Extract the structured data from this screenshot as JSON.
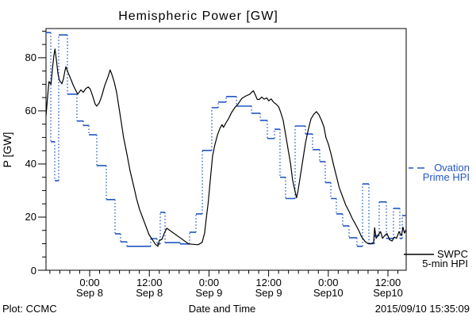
{
  "title": "Hemispheric Power [GW]",
  "legend": {
    "ovation": {
      "line1": "Ovation",
      "line2": "Prime HPI",
      "color": "#2257c4"
    },
    "swpc": {
      "line1": "SWPC",
      "line2": "5-min HPI",
      "color": "#000000"
    }
  },
  "footer": {
    "left": "Plot: CCMC",
    "center": "Date and Time",
    "right": "2015/09/10 15:35:09"
  },
  "chart_data": {
    "type": "line",
    "title": "Hemispheric Power [GW]",
    "xlabel": "Date and Time",
    "ylabel": "P [GW]",
    "ylim": [
      0,
      91
    ],
    "y_major_ticks": [
      0,
      20,
      40,
      60,
      80
    ],
    "y_minor_step": 5,
    "grid": false,
    "legend_position": "right-outside",
    "x_hours_span": 72.45,
    "x_minor_step_hours": 2,
    "x_major_ticks": [
      {
        "t": 8.78,
        "time": "0:00",
        "date": "Sep 8"
      },
      {
        "t": 20.78,
        "time": "12:00",
        "date": "Sep 8"
      },
      {
        "t": 32.78,
        "time": "0:00",
        "date": "Sep 9"
      },
      {
        "t": 44.78,
        "time": "12:00",
        "date": "Sep 9"
      },
      {
        "t": 56.78,
        "time": "0:00",
        "date": "Sep10"
      },
      {
        "t": 68.78,
        "time": "12:00",
        "date": "Sep10"
      }
    ],
    "series": [
      {
        "name": "Ovation Prime HPI",
        "color": "#2257c4",
        "style": "steps",
        "points": [
          [
            0,
            89.5
          ],
          [
            0.96,
            48.4
          ],
          [
            1.76,
            33.7
          ],
          [
            2.55,
            88.6
          ],
          [
            4.31,
            66.3
          ],
          [
            6.22,
            56.2
          ],
          [
            7.5,
            54.5
          ],
          [
            8.62,
            51
          ],
          [
            10.21,
            39.4
          ],
          [
            12.13,
            26.6
          ],
          [
            13.88,
            13.7
          ],
          [
            15,
            10.7
          ],
          [
            16.28,
            9
          ],
          [
            21.06,
            11.9
          ],
          [
            22.34,
            9.9
          ],
          [
            22.98,
            21.8
          ],
          [
            23.94,
            10.4
          ],
          [
            26.97,
            9.9
          ],
          [
            28.88,
            14.3
          ],
          [
            30.16,
            21.2
          ],
          [
            31.44,
            45.1
          ],
          [
            33.35,
            61.2
          ],
          [
            34.63,
            63.3
          ],
          [
            36.22,
            65.4
          ],
          [
            38.3,
            61.8
          ],
          [
            41.33,
            59.1
          ],
          [
            43.09,
            56.4
          ],
          [
            44.52,
            49.6
          ],
          [
            45.96,
            53.1
          ],
          [
            47.07,
            35
          ],
          [
            48.19,
            27
          ],
          [
            50.11,
            54.3
          ],
          [
            52.18,
            51.3
          ],
          [
            53.62,
            45.4
          ],
          [
            55.05,
            40.9
          ],
          [
            56.17,
            33
          ],
          [
            57.29,
            27
          ],
          [
            58.4,
            21.2
          ],
          [
            59.68,
            16.7
          ],
          [
            60.96,
            12.2
          ],
          [
            62.55,
            9
          ],
          [
            63.67,
            32.5
          ],
          [
            64.95,
            10
          ],
          [
            66.06,
            13
          ],
          [
            67.02,
            25.7
          ],
          [
            68.46,
            12
          ],
          [
            69.89,
            23.3
          ],
          [
            71.17,
            12
          ],
          [
            71.65,
            20.6
          ],
          [
            72.45,
            20.6
          ]
        ]
      },
      {
        "name": "SWPC 5-min HPI",
        "color": "#000000",
        "style": "line",
        "points": [
          [
            0,
            58
          ],
          [
            0.3,
            65
          ],
          [
            0.6,
            71
          ],
          [
            1,
            70
          ],
          [
            1.3,
            76
          ],
          [
            1.6,
            81
          ],
          [
            1.8,
            83.3
          ],
          [
            2.1,
            79
          ],
          [
            2.4,
            74
          ],
          [
            2.7,
            71.5
          ],
          [
            3.2,
            70.2
          ],
          [
            3.5,
            72
          ],
          [
            3.8,
            75
          ],
          [
            4,
            76.6
          ],
          [
            4.3,
            75
          ],
          [
            4.8,
            72.8
          ],
          [
            5.4,
            70
          ],
          [
            5.9,
            68
          ],
          [
            6.4,
            66.3
          ],
          [
            7,
            67.9
          ],
          [
            7.5,
            67
          ],
          [
            8,
            68.4
          ],
          [
            8.5,
            69
          ],
          [
            8.9,
            68.2
          ],
          [
            9.4,
            65.5
          ],
          [
            9.9,
            62.5
          ],
          [
            10.2,
            61.8
          ],
          [
            10.7,
            63
          ],
          [
            11.2,
            65.5
          ],
          [
            11.8,
            69.5
          ],
          [
            12.5,
            73
          ],
          [
            12.9,
            75.4
          ],
          [
            13.2,
            74
          ],
          [
            13.7,
            71
          ],
          [
            14.2,
            67
          ],
          [
            14.7,
            61
          ],
          [
            15.2,
            55
          ],
          [
            15.6,
            50
          ],
          [
            16.3,
            43.5
          ],
          [
            16.9,
            37.5
          ],
          [
            17.6,
            32
          ],
          [
            18.2,
            27
          ],
          [
            18.8,
            23
          ],
          [
            19.5,
            19.5
          ],
          [
            20.1,
            16.5
          ],
          [
            20.7,
            13.5
          ],
          [
            21.4,
            11.5
          ],
          [
            22,
            9.8
          ],
          [
            22.5,
            9
          ],
          [
            22.8,
            11.3
          ],
          [
            23.3,
            11.6
          ],
          [
            23.8,
            14
          ],
          [
            24.3,
            15.8
          ],
          [
            28.7,
            9.9
          ],
          [
            30.6,
            9.6
          ],
          [
            31.4,
            10.5
          ],
          [
            31.9,
            14
          ],
          [
            32.2,
            19
          ],
          [
            32.6,
            25
          ],
          [
            32.9,
            31
          ],
          [
            33.2,
            37
          ],
          [
            33.5,
            43
          ],
          [
            34,
            47.5
          ],
          [
            34.5,
            51
          ],
          [
            35,
            53.5
          ],
          [
            35.4,
            54.8
          ],
          [
            35.7,
            53.8
          ],
          [
            36.2,
            55.5
          ],
          [
            36.7,
            57
          ],
          [
            37.3,
            59.3
          ],
          [
            38,
            61.3
          ],
          [
            38.6,
            62.5
          ],
          [
            39.4,
            64.7
          ],
          [
            40.2,
            65.6
          ],
          [
            41,
            66.3
          ],
          [
            41.7,
            67.6
          ],
          [
            42.1,
            66
          ],
          [
            42.5,
            64.3
          ],
          [
            42.9,
            64.3
          ],
          [
            43.4,
            65.2
          ],
          [
            43.9,
            64.4
          ],
          [
            44.4,
            64.9
          ],
          [
            44.8,
            63.8
          ],
          [
            45.3,
            64.5
          ],
          [
            45.8,
            63.2
          ],
          [
            46.3,
            62.5
          ],
          [
            46.8,
            61.5
          ],
          [
            47.2,
            59.5
          ],
          [
            47.7,
            56.5
          ],
          [
            48.2,
            51
          ],
          [
            48.7,
            45.5
          ],
          [
            49.2,
            40
          ],
          [
            49.6,
            34
          ],
          [
            50,
            30.5
          ],
          [
            50.3,
            28
          ],
          [
            50.4,
            27.3
          ],
          [
            50.7,
            30
          ],
          [
            51.2,
            36
          ],
          [
            51.7,
            42
          ],
          [
            52.2,
            48
          ],
          [
            52.7,
            52.5
          ],
          [
            53.3,
            57
          ],
          [
            53.9,
            58.8
          ],
          [
            54.4,
            59.7
          ],
          [
            54.9,
            58.5
          ],
          [
            55.4,
            56.5
          ],
          [
            55.9,
            54
          ],
          [
            56.3,
            50
          ],
          [
            56.8,
            47.5
          ],
          [
            57.3,
            44
          ],
          [
            57.8,
            40
          ],
          [
            58.4,
            35.5
          ],
          [
            59,
            31
          ],
          [
            59.7,
            27.5
          ],
          [
            60.3,
            24.5
          ],
          [
            61,
            22
          ],
          [
            61.6,
            19.5
          ],
          [
            62.2,
            17.5
          ],
          [
            62.9,
            15
          ],
          [
            63.5,
            12.5
          ],
          [
            64.2,
            10.8
          ],
          [
            64.8,
            10
          ],
          [
            65.4,
            10
          ],
          [
            65.9,
            10.5
          ],
          [
            66.1,
            16
          ],
          [
            66.4,
            12
          ],
          [
            66.9,
            13.5
          ],
          [
            67.3,
            14.5
          ],
          [
            67.7,
            12
          ],
          [
            68.1,
            13
          ],
          [
            68.6,
            13.8
          ],
          [
            69.1,
            11.5
          ],
          [
            69.6,
            11
          ],
          [
            70.1,
            12.5
          ],
          [
            70.5,
            12
          ],
          [
            71,
            14.5
          ],
          [
            71.5,
            13
          ],
          [
            71.8,
            16.2
          ],
          [
            72.1,
            14
          ],
          [
            72.45,
            15.3
          ]
        ]
      }
    ]
  }
}
